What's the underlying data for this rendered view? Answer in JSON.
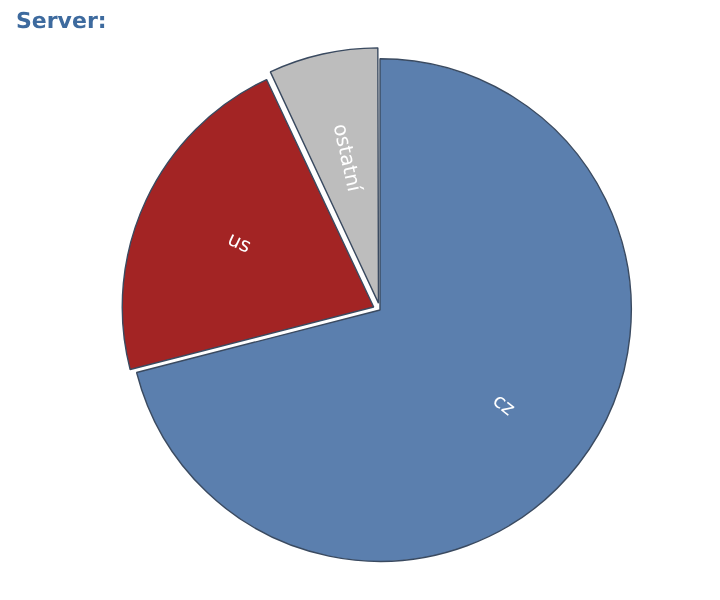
{
  "chart_data": {
    "type": "pie",
    "title": "Server:",
    "categories": [
      "cz",
      "us",
      "ostatní"
    ],
    "values": [
      71,
      22,
      7
    ],
    "colors": [
      "#5b7fae",
      "#a32424",
      "#bdbdbd"
    ],
    "legend": false
  }
}
